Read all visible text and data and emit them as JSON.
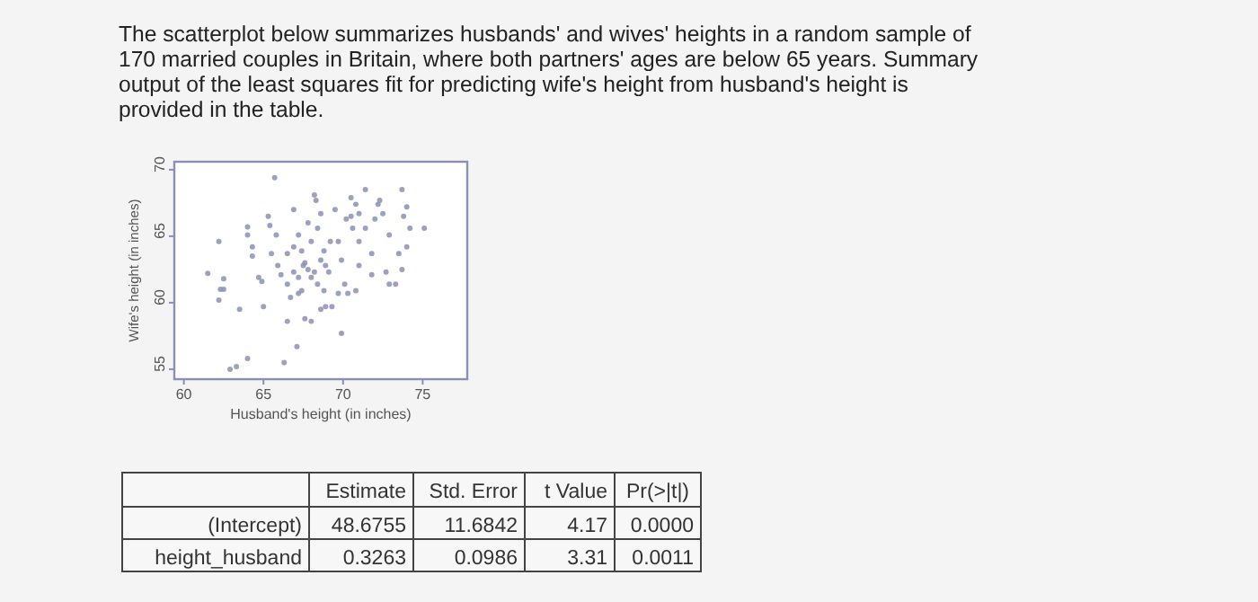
{
  "chart_data": {
    "type": "scatter",
    "title": "The scatterplot below summarizes husbands' and wives' heights in a random sample of 170 married couples in Britain, where both partners' ages are below 65 years.  Summary output of the least squares fit for predicting wife's height from husband's height is provided in the table.",
    "xlabel": "Husband's height (in inches)",
    "ylabel": "Wife's height (in inches)",
    "xlim": [
      59.4,
      77.8
    ],
    "ylim": [
      54.25,
      70.6
    ],
    "xticks": [
      60,
      65,
      70,
      75
    ],
    "yticks": [
      55,
      60,
      65,
      70
    ],
    "grid": false,
    "marker": "circle",
    "series": [
      {
        "color": "#8a90b4",
        "x": [
          61.5,
          62.2,
          62.5,
          62.5,
          62.2,
          62.3,
          63.5,
          62.9,
          63.3,
          64.0,
          64.0,
          64.0,
          64.3,
          64.3,
          65.0,
          64.7,
          64.9,
          65.3,
          65.4,
          65.5,
          65.8,
          65.9,
          66.1,
          65.7,
          66.3,
          66.5,
          67.1,
          66.9,
          67.2,
          67.4,
          67.6,
          66.5,
          66.7,
          67.2,
          67.6,
          68.0,
          68.2,
          68.3,
          67.8,
          68.0,
          68.4,
          68.6,
          68.8,
          68.9,
          69.1,
          68.4,
          68.0,
          68.8,
          68.9,
          69.5,
          69.7,
          69.9,
          70.1,
          70.2,
          70.5,
          70.6,
          71.0,
          71.0,
          70.8,
          70.3,
          69.9,
          71.4,
          71.8,
          72.0,
          72.2,
          72.3,
          72.5,
          72.9,
          72.7,
          73.3,
          73.7,
          73.8,
          74.0,
          74.2,
          73.5,
          73.7,
          74.0,
          75.1,
          72.9,
          71.4,
          71.0,
          69.3,
          68.6,
          66.9,
          67.2,
          67.5,
          67.8,
          68.2,
          67.4,
          66.9,
          66.5,
          68.6,
          69.2,
          69.7,
          70.5,
          70.8,
          71.8
        ],
        "values": [
          62.2,
          64.6,
          61.8,
          61.0,
          60.2,
          61.0,
          59.5,
          55.0,
          55.2,
          55.8,
          65.7,
          65.1,
          64.2,
          63.5,
          59.7,
          61.9,
          61.6,
          66.5,
          65.8,
          63.7,
          65.1,
          62.8,
          62.1,
          69.4,
          55.5,
          58.6,
          56.7,
          67.0,
          65.1,
          63.9,
          63.0,
          61.4,
          60.4,
          60.7,
          58.8,
          58.6,
          68.1,
          67.7,
          66.0,
          64.6,
          65.6,
          66.7,
          63.9,
          62.8,
          62.3,
          61.4,
          61.9,
          60.9,
          59.7,
          67.0,
          64.6,
          63.2,
          61.4,
          66.3,
          66.5,
          65.6,
          64.6,
          62.8,
          60.9,
          60.7,
          57.7,
          68.5,
          63.7,
          66.3,
          67.4,
          67.7,
          66.7,
          61.4,
          62.3,
          61.4,
          68.5,
          66.5,
          67.2,
          65.6,
          63.7,
          62.5,
          64.2,
          65.6,
          65.1,
          65.6,
          66.7,
          59.7,
          59.5,
          62.3,
          61.9,
          62.8,
          62.5,
          62.3,
          60.9,
          64.2,
          63.7,
          63.2,
          64.6,
          60.7,
          67.9,
          67.4,
          62.1
        ]
      }
    ],
    "annotations": [
      "Estimate",
      "Std. Error",
      "t Value",
      "Pr(>|t|)",
      "(Intercept)",
      "48.6755",
      "11.6842",
      "4.17",
      "0.0000",
      "height_husband",
      "0.3263",
      "0.0986",
      "3.31",
      "0.0011"
    ]
  }
}
